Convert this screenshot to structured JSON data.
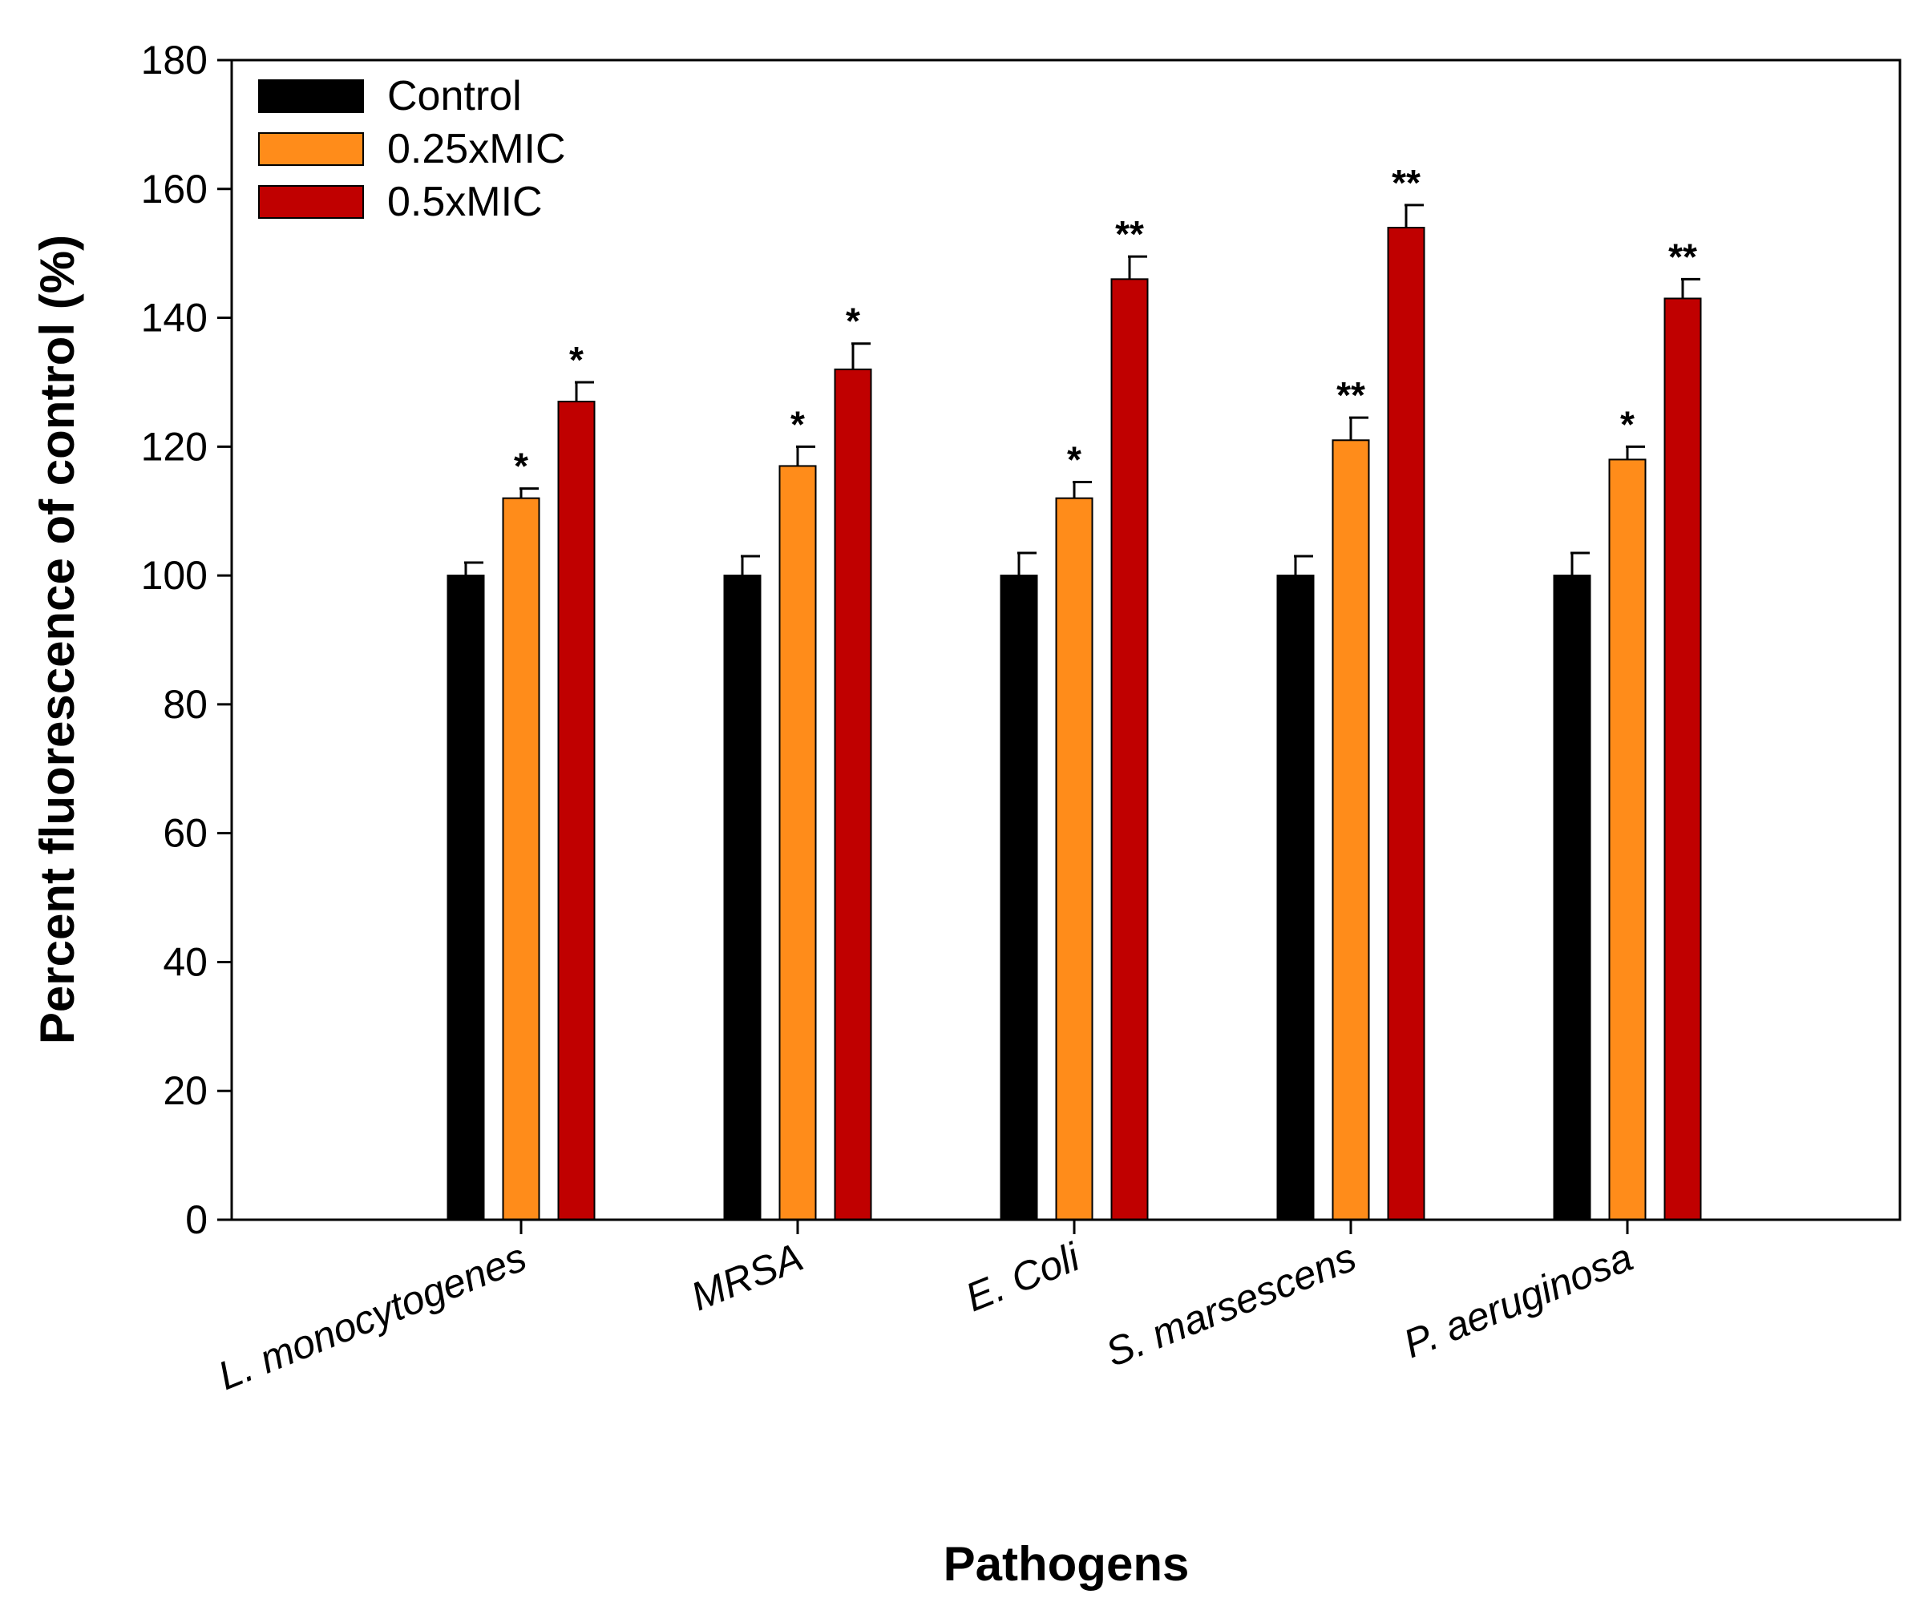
{
  "chart_data": {
    "type": "bar",
    "title": "",
    "xlabel": "Pathogens",
    "ylabel": "Percent fluorescence of control (%)",
    "ylim": [
      0,
      180
    ],
    "yticks": [
      0,
      20,
      40,
      60,
      80,
      100,
      120,
      140,
      160,
      180
    ],
    "grid": false,
    "legend_position": "top-left",
    "categories": [
      "L. monocytogenes",
      "MRSA",
      "E. Coli",
      "S. marsescens",
      "P. aeruginosa"
    ],
    "series": [
      {
        "name": "Control",
        "color": "#000000",
        "values": [
          100,
          100,
          100,
          100,
          100
        ],
        "errors": [
          2,
          3,
          3.5,
          3,
          3.5
        ],
        "significance": [
          "",
          "",
          "",
          "",
          ""
        ]
      },
      {
        "name": "0.25xMIC",
        "color": "#FF8C1A",
        "values": [
          112,
          117,
          112,
          121,
          118
        ],
        "errors": [
          1.5,
          3,
          2.5,
          3.5,
          2
        ],
        "significance": [
          "*",
          "*",
          "*",
          "**",
          "*"
        ]
      },
      {
        "name": "0.5xMIC",
        "color": "#C00000",
        "values": [
          127,
          132,
          146,
          154,
          143
        ],
        "errors": [
          3,
          4,
          3.5,
          3.5,
          3
        ],
        "significance": [
          "*",
          "*",
          "**",
          "**",
          "**"
        ]
      }
    ]
  }
}
